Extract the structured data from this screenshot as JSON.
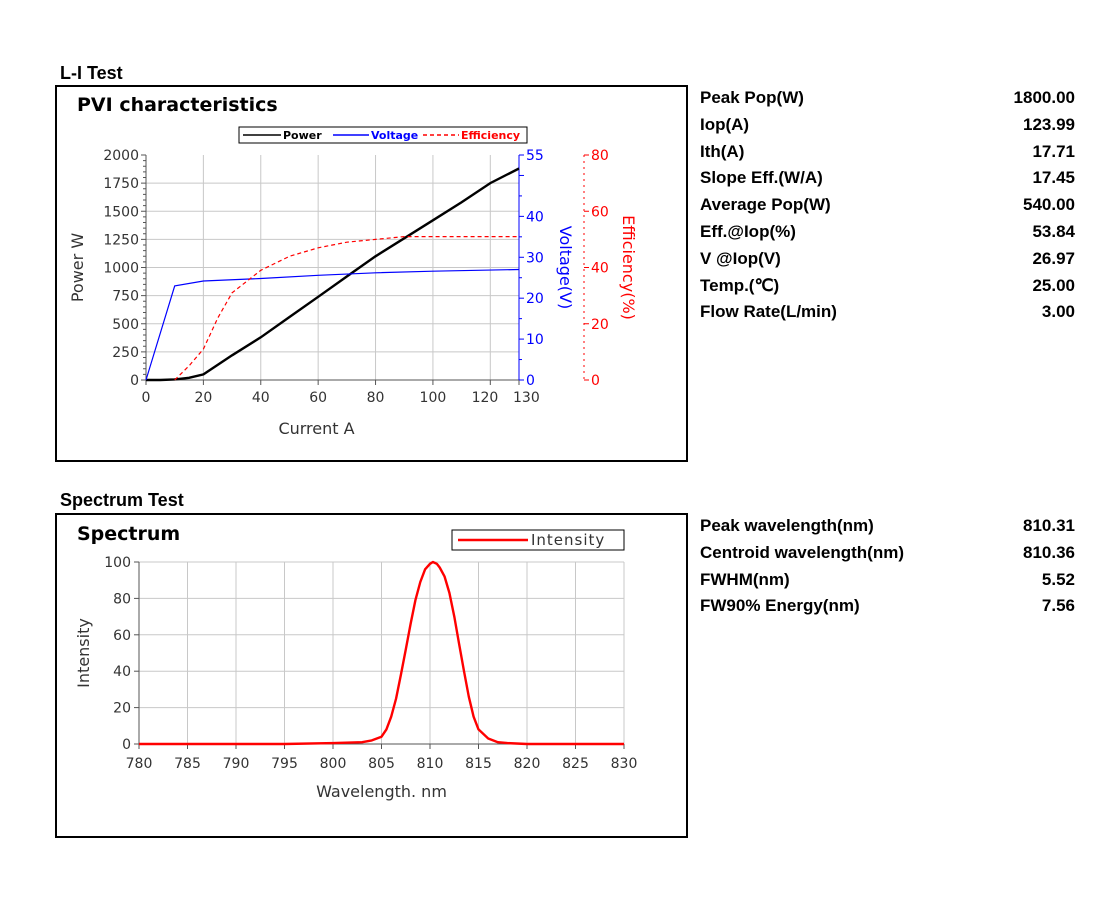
{
  "li_test": {
    "section_title": "L-I Test",
    "params": [
      {
        "label": "Peak Pop(W)",
        "value": "1800.00"
      },
      {
        "label": "Iop(A)",
        "value": "123.99"
      },
      {
        "label": "Ith(A)",
        "value": "17.71"
      },
      {
        "label": "Slope Eff.(W/A)",
        "value": "17.45"
      },
      {
        "label": "Average Pop(W)",
        "value": "540.00"
      },
      {
        "label": "Eff.@Iop(%)",
        "value": "53.84"
      },
      {
        "label": "V @Iop(V)",
        "value": "26.97"
      },
      {
        "label": "Temp.(℃)",
        "value": "25.00"
      },
      {
        "label": "Flow Rate(L/min)",
        "value": "3.00"
      }
    ]
  },
  "spectrum_test": {
    "section_title": "Spectrum Test",
    "params": [
      {
        "label": "Peak wavelength(nm)",
        "value": "810.31"
      },
      {
        "label": "Centroid wavelength(nm)",
        "value": "810.36"
      },
      {
        "label": "FWHM(nm)",
        "value": "5.52"
      },
      {
        "label": "FW90% Energy(nm)",
        "value": "7.56"
      }
    ]
  },
  "chart_data": [
    {
      "type": "line",
      "title": "PVI characteristics",
      "xlabel": "Current A",
      "ylabel": "Power W",
      "y2label": "Voltage(V)",
      "y3label": "Efficiency(%)",
      "xlim": [
        0,
        130
      ],
      "ylim": [
        0,
        2000
      ],
      "y2lim": [
        0,
        55
      ],
      "y3lim": [
        0,
        80
      ],
      "x_ticks": [
        "0",
        "20",
        "40",
        "60",
        "80",
        "100",
        "120",
        "130"
      ],
      "x_tick_values": [
        0,
        20,
        40,
        60,
        80,
        100,
        120,
        130
      ],
      "y_ticks": [
        "0",
        "250",
        "500",
        "750",
        "1000",
        "1250",
        "1500",
        "1750",
        "2000"
      ],
      "y2_ticks": [
        "0",
        "10",
        "20",
        "30",
        "40",
        "55"
      ],
      "y2_tick_values": [
        0,
        10,
        20,
        30,
        40,
        55
      ],
      "y3_ticks": [
        "0",
        "20",
        "40",
        "60",
        "80"
      ],
      "grid": true,
      "legend_position": "top-right",
      "colors": {
        "power": "#000000",
        "voltage": "#0000ff",
        "efficiency": "#ff0000"
      },
      "series": [
        {
          "name": "Power",
          "axis": "y",
          "style": "solid",
          "x": [
            0,
            5,
            10,
            15,
            20,
            30,
            40,
            50,
            60,
            70,
            80,
            90,
            100,
            110,
            120,
            130
          ],
          "y": [
            0,
            0,
            5,
            20,
            50,
            220,
            380,
            560,
            740,
            920,
            1100,
            1260,
            1420,
            1580,
            1750,
            1880
          ]
        },
        {
          "name": "Voltage",
          "axis": "y2",
          "style": "solid",
          "x": [
            0,
            10,
            20,
            40,
            60,
            80,
            100,
            130
          ],
          "y": [
            0,
            23,
            24.2,
            24.8,
            25.6,
            26.2,
            26.6,
            27
          ]
        },
        {
          "name": "Efficiency",
          "axis": "y3",
          "style": "dashed",
          "x": [
            10,
            15,
            20,
            25,
            30,
            40,
            50,
            60,
            70,
            80,
            90,
            100,
            110,
            120,
            130
          ],
          "y": [
            0,
            5,
            11,
            22,
            31,
            39,
            44,
            47,
            49,
            50,
            51,
            51,
            51,
            51,
            51
          ]
        }
      ]
    },
    {
      "type": "line",
      "title": "Spectrum",
      "xlabel": "Wavelength. nm",
      "ylabel": "Intensity",
      "xlim": [
        780,
        830
      ],
      "ylim": [
        0,
        100
      ],
      "x_ticks": [
        "780",
        "785",
        "790",
        "795",
        "800",
        "805",
        "810",
        "815",
        "820",
        "825",
        "830"
      ],
      "y_ticks": [
        "0",
        "20",
        "40",
        "60",
        "80",
        "100"
      ],
      "grid": true,
      "legend_position": "top-right",
      "colors": {
        "intensity": "#ff0000"
      },
      "series": [
        {
          "name": "Intensity",
          "axis": "y",
          "x": [
            780,
            795,
            800,
            803,
            804,
            805,
            805.5,
            806,
            806.5,
            807,
            807.5,
            808,
            808.5,
            809,
            809.5,
            810,
            810.3,
            810.7,
            811,
            811.5,
            812,
            812.5,
            813,
            813.5,
            814,
            814.5,
            815,
            816,
            817,
            818,
            820,
            830
          ],
          "y": [
            0,
            0,
            0.5,
            1,
            2,
            4,
            8,
            15,
            25,
            38,
            52,
            66,
            79,
            89,
            96,
            99,
            100,
            99,
            97,
            92,
            83,
            70,
            55,
            40,
            26,
            15,
            8,
            3,
            1,
            0.5,
            0,
            0
          ]
        }
      ]
    }
  ]
}
